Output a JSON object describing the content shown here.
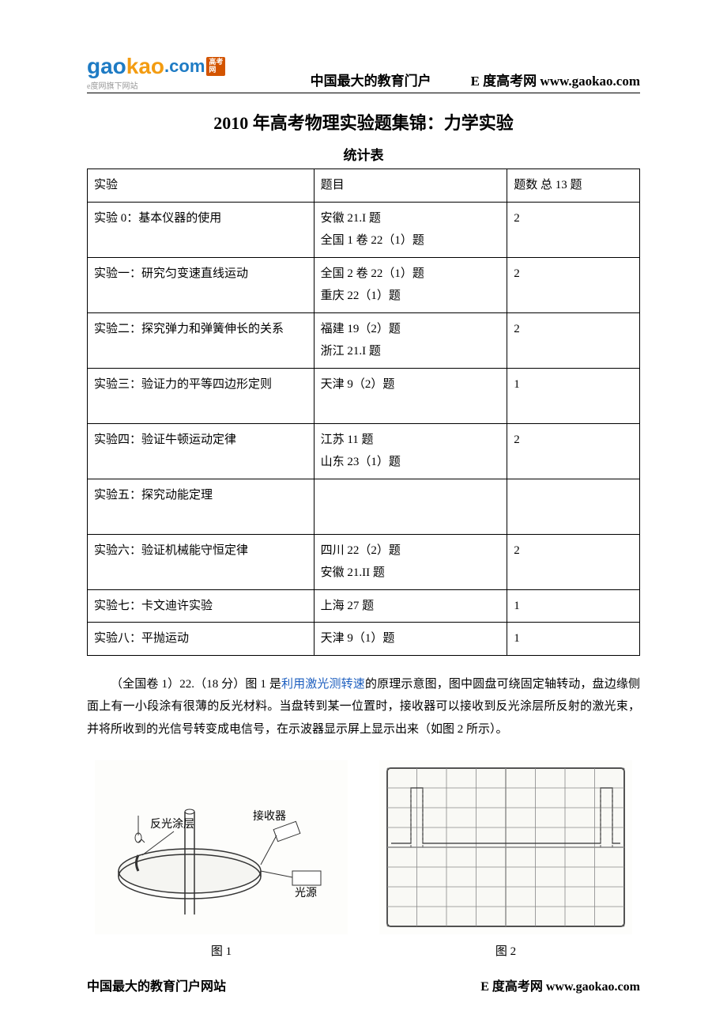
{
  "logo": {
    "part1": "gao",
    "part2": "kao",
    "part3": ".com",
    "badge_line1": "高考",
    "badge_line2": "网",
    "sub": "e度网旗下网站",
    "color_blue": "#1e7bc4",
    "color_orange": "#f39c12",
    "badge_bg": "#d35400"
  },
  "header": {
    "center": "中国最大的教育门户",
    "right": "E 度高考网 www.gaokao.com"
  },
  "title": "2010 年高考物理实验题集锦：力学实验",
  "subtitle": "统计表",
  "table": {
    "header": {
      "c1": "实验",
      "c2": "题目",
      "c3": "题数 总 13 题"
    },
    "rows": [
      {
        "c1": "实验 0：基本仪器的使用",
        "c2": "安徽 21.I 题\n全国 1 卷 22（1）题",
        "c3": "2"
      },
      {
        "c1": "实验一：研究匀变速直线运动",
        "c2": "全国 2 卷 22（1）题\n重庆 22（1）题",
        "c3": "2"
      },
      {
        "c1": "实验二：探究弹力和弹簧伸长的关系",
        "c2": "福建 19（2）题\n浙江 21.I 题",
        "c3": "2"
      },
      {
        "c1": "实验三：验证力的平等四边形定则",
        "c2": "天津 9（2）题\n",
        "c3": "1"
      },
      {
        "c1": "实验四：验证牛顿运动定律",
        "c2": "江苏 11 题\n山东 23（1）题",
        "c3": "2"
      },
      {
        "c1": "实验五：探究动能定理",
        "c2": "\n",
        "c3": ""
      },
      {
        "c1": "实验六：验证机械能守恒定律",
        "c2": "四川 22（2）题\n安徽 21.II 题",
        "c3": "2"
      },
      {
        "c1": "实验七：卡文迪许实验",
        "c2": "上海 27 题",
        "c3": "1"
      },
      {
        "c1": "实验八：平抛运动",
        "c2": "天津 9（1）题",
        "c3": "1"
      }
    ]
  },
  "paragraph": {
    "lead": "（全国卷 1）22.（18 分）图 1 是",
    "link": "利用激光测转速",
    "rest": "的原理示意图，图中圆盘可绕固定轴转动，盘边缘侧面上有一小段涂有很薄的反光材料。当盘转到某一位置时，接收器可以接收到反光涂层所反射的激光束，并将所收到的光信号转变成电信号，在示波器显示屏上显示出来（如图 2 所示）。"
  },
  "figure1": {
    "label": "图 1",
    "coating": "反光涂层",
    "receiver": "接收器",
    "source": "光源"
  },
  "figure2": {
    "label": "图 2",
    "grid_color": "#888",
    "boxes_x": [
      40,
      280
    ],
    "dash_color": "#555"
  },
  "footer": {
    "left": "中国最大的教育门户网站",
    "right": "E 度高考网 www.gaokao.com"
  }
}
